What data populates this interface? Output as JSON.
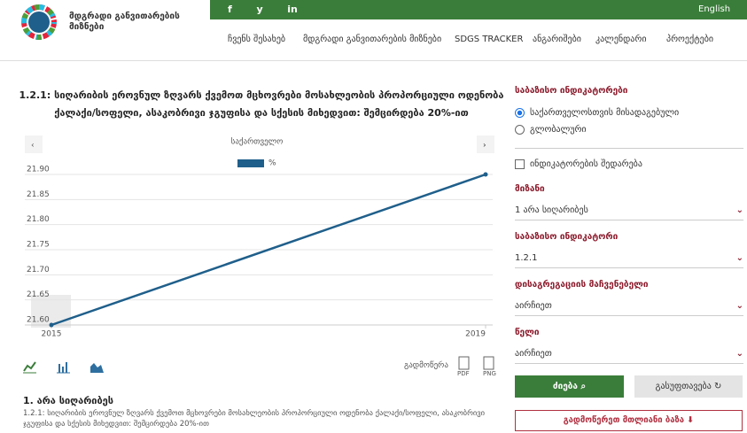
{
  "header": {
    "logo_text": "მდგრადი განვითარების მიზნები",
    "language": "English",
    "nav": [
      "ჩვენს შესახებ",
      "მდგრადი განვითარების მიზნები",
      "SDGS TRACKER",
      "ანგარიშები",
      "კალენდარი",
      "პროექტები"
    ]
  },
  "chart_data": {
    "type": "line",
    "title": "1.2.1: სიღარიბის ეროვნულ ზღვარს ქვემოთ მცხოვრები მოსახლეობის პროპორციული ოდენობა ქალაქი/სოფელი, ასაკობრივი ჯგუფისა და სქესის მიხედვით: შემცირდება 20%-ით",
    "subtitle": "საქართველო",
    "x": [
      2015,
      2019
    ],
    "series": [
      {
        "name": "%",
        "color": "#1f5f8b",
        "values": [
          21.6,
          21.9
        ]
      }
    ],
    "xlim": [
      2015,
      2019
    ],
    "xticks": [
      2015,
      2019
    ],
    "ylim": [
      21.6,
      21.9
    ],
    "yticks": [
      {
        "value": 21.6,
        "label": "21.60"
      },
      21.65,
      {
        "value": 21.7,
        "label": "21.70"
      },
      21.75,
      {
        "value": 21.8,
        "label": "21.80"
      },
      21.85,
      {
        "value": 21.9,
        "label": "21.90"
      }
    ],
    "grid": true
  },
  "download": {
    "label": "გადმოწერა",
    "formats": [
      "PDF",
      "PNG"
    ]
  },
  "goal": {
    "title": "1. არა სიღარიბეს",
    "description": "1.2.1: სიღარიბის ეროვნულ ზღვარს ქვემოთ მცხოვრები მოსახლეობის პროპორციული ოდენობა ქალაქი/სოფელი, ასაკობრივი ჯგუფისა და სქესის მიხედვით: შემცირდება 20%-ით"
  },
  "sidebar": {
    "heading": "საბაზისო ინდიკატორები",
    "radios": [
      "საქართველოსთვის მისადაგებული",
      "გლობალური"
    ],
    "checkbox": "ინდიკატორების შედარება",
    "fields": [
      {
        "label": "მიზანი",
        "value": "1 არა სიღარიბეს"
      },
      {
        "label": "საბაზისო ინდიკატორი",
        "value": "1.2.1"
      },
      {
        "label": "დისაგრეგაციის მაჩვენებელი",
        "value": "აირჩიეთ"
      },
      {
        "label": "წელი",
        "value": "აირჩიეთ"
      }
    ],
    "search": "ძიება",
    "clear": "გასუფთავება",
    "download_all": "გადმოწერეთ მთლიანი ბაზა"
  }
}
